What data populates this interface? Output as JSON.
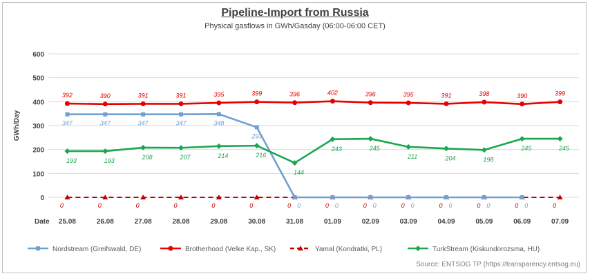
{
  "title": "Pipeline-Import from Russia",
  "subtitle": "Physical gasflows in GWh/Gasday (06:00-06:00 CET)",
  "source": "Source: ENTSOG TP (https://transparency.entsog.eu)",
  "chart_data": {
    "type": "line",
    "xlabel": "Date",
    "ylabel": "GWh/Day",
    "ylim": [
      0,
      600
    ],
    "yticks": [
      "0",
      "100",
      "200",
      "300",
      "400",
      "500",
      "600"
    ],
    "grid": true,
    "legend_position": "bottom",
    "categories": [
      "25.08",
      "26.08",
      "27.08",
      "28.08",
      "29.08",
      "30.08",
      "31.08",
      "01.09",
      "02.09",
      "03.09",
      "04.09",
      "05.09",
      "06.09",
      "07.09"
    ],
    "series": [
      {
        "name": "Nordstream (Greifswald, DE)",
        "color": "#6fa0d0",
        "marker": "square",
        "dash": false,
        "values": [
          347,
          347,
          347,
          347,
          348,
          293,
          0,
          0,
          0,
          0,
          0,
          0,
          0,
          null
        ],
        "labels": [
          "347",
          "347",
          "347",
          "347",
          "348",
          "293",
          "0",
          "0",
          "0",
          "0",
          "0",
          "0",
          "0",
          ""
        ]
      },
      {
        "name": "Brotherhood (Velke Kap., SK)",
        "color": "#e60000",
        "marker": "circle",
        "dash": false,
        "values": [
          392,
          390,
          391,
          391,
          395,
          399,
          396,
          402,
          396,
          395,
          391,
          398,
          390,
          399
        ],
        "labels": [
          "392",
          "390",
          "391",
          "391",
          "395",
          "399",
          "396",
          "402",
          "396",
          "395",
          "391",
          "398",
          "390",
          "399"
        ]
      },
      {
        "name": "Yamal (Kondratki, PL)",
        "color": "#c00000",
        "marker": "triangle",
        "dash": true,
        "values": [
          0,
          0,
          0,
          0,
          0,
          0,
          0,
          0,
          0,
          0,
          0,
          0,
          0,
          0
        ],
        "labels": [
          "0",
          "0",
          "0",
          "0",
          "0",
          "0",
          "0",
          "0",
          "0",
          "0",
          "0",
          "0",
          "0",
          "0"
        ]
      },
      {
        "name": "TurkStream (Kiskundorozsma, HU)",
        "color": "#1aa650",
        "marker": "diamond",
        "dash": false,
        "values": [
          193,
          193,
          208,
          207,
          214,
          216,
          144,
          243,
          245,
          211,
          204,
          198,
          245,
          245
        ],
        "labels": [
          "193",
          "193",
          "208",
          "207",
          "214",
          "216",
          "144",
          "243",
          "245",
          "211",
          "204",
          "198",
          "245",
          "245"
        ]
      }
    ]
  }
}
